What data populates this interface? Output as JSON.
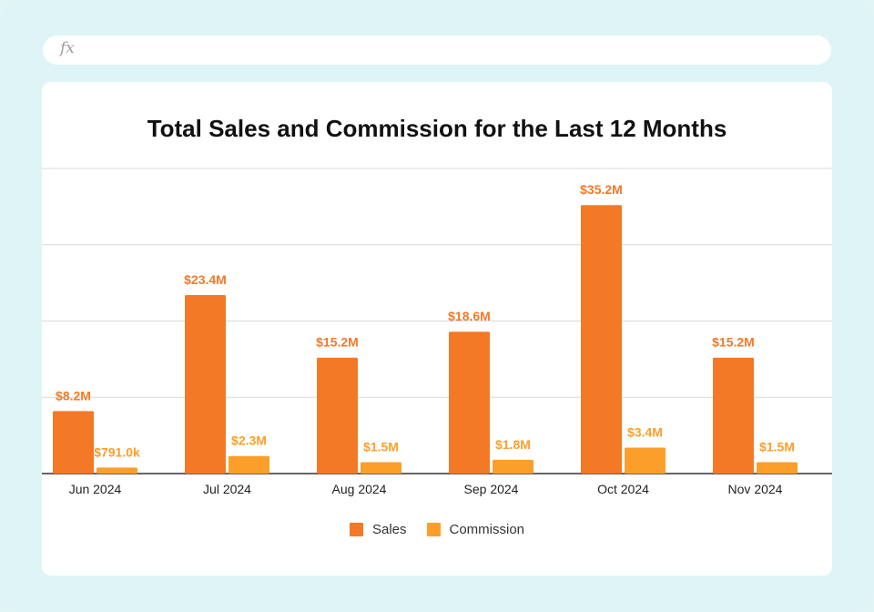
{
  "toolbar": {
    "formula_icon": "fx"
  },
  "colors": {
    "sales": "#f47926",
    "commission": "#fb9f2a",
    "label": "#f47926",
    "grid": "#d9d9d9",
    "axis": "#333333"
  },
  "chart_data": {
    "type": "bar",
    "title": "Total Sales and Commission for the Last 12 Months",
    "categories": [
      "Jun 2024",
      "Jul 2024",
      "Aug 2024",
      "Sep 2024",
      "Oct 2024",
      "Nov 2024"
    ],
    "series": [
      {
        "name": "Sales",
        "values": [
          8.2,
          23.4,
          15.2,
          18.6,
          35.2,
          15.2
        ],
        "labels": [
          "$8.2M",
          "$23.4M",
          "$15.2M",
          "$18.6M",
          "$35.2M",
          "$15.2M"
        ]
      },
      {
        "name": "Commission",
        "values": [
          0.791,
          2.3,
          1.5,
          1.8,
          3.4,
          1.5
        ],
        "labels": [
          "$791.0k",
          "$2.3M",
          "$1.5M",
          "$1.8M",
          "$3.4M",
          "$1.5M"
        ]
      }
    ],
    "ylim": [
      0,
      40
    ],
    "grid": true,
    "ytick_values": [
      0,
      10,
      20,
      30,
      40
    ],
    "xlabel": "",
    "ylabel": "",
    "legend": "bottom-center"
  }
}
